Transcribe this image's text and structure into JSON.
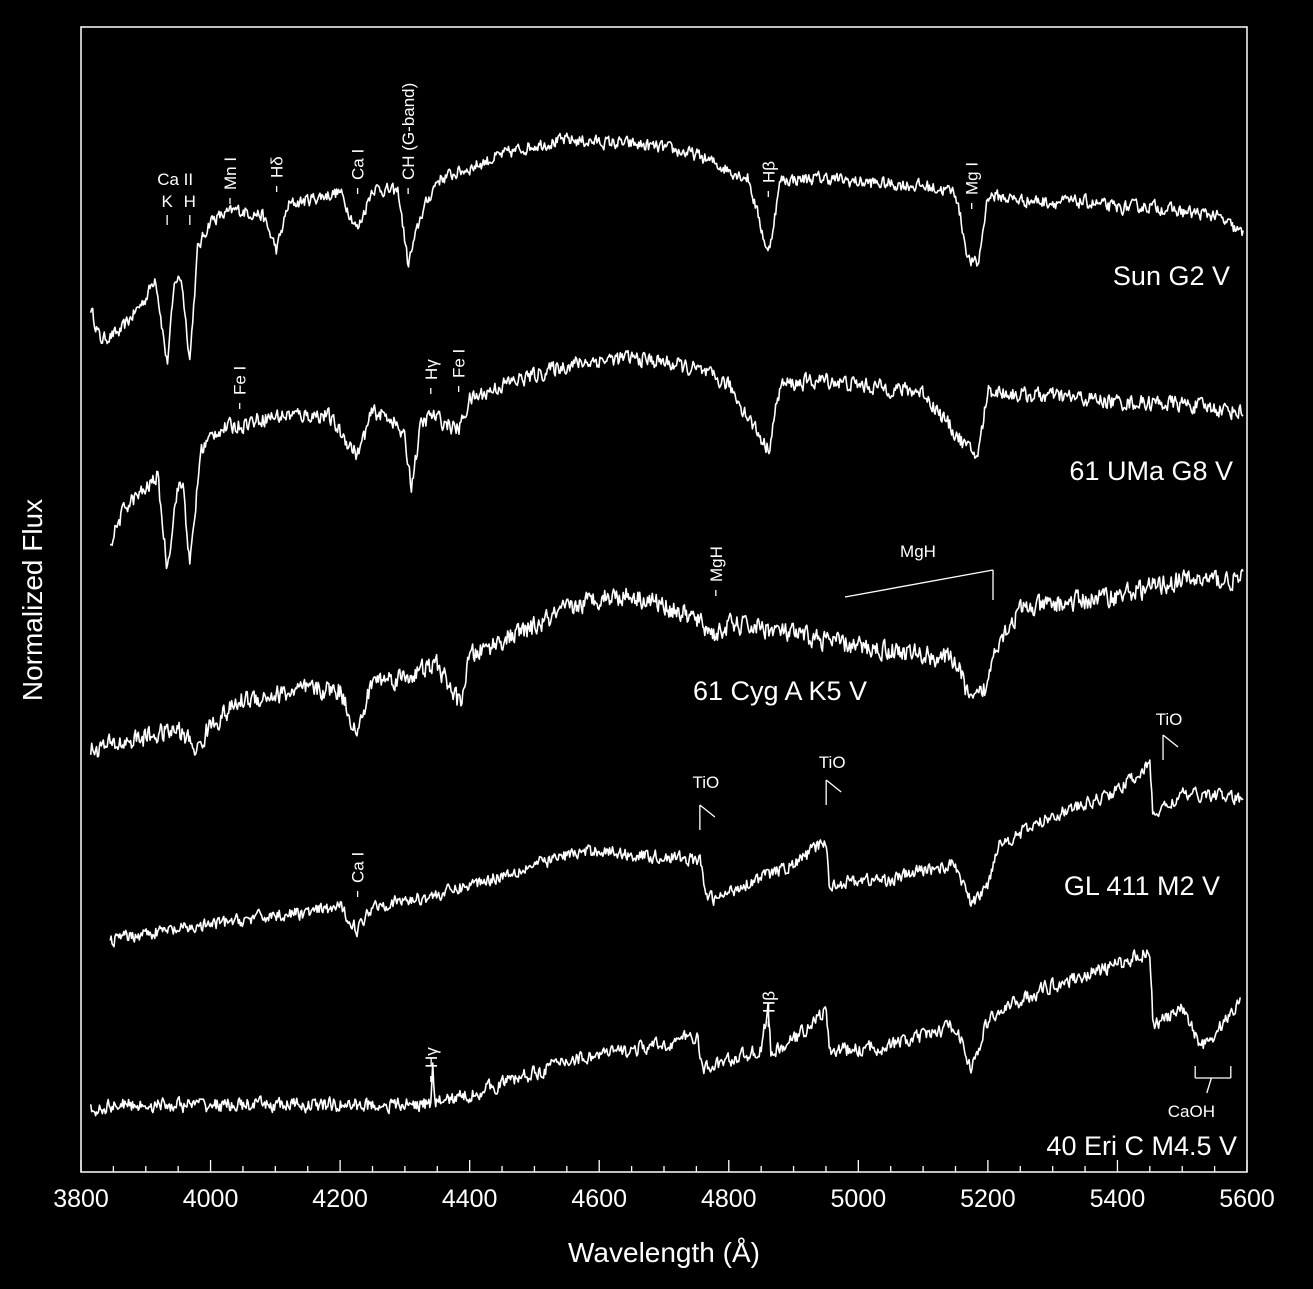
{
  "chart_data": {
    "type": "line",
    "xlabel": "Wavelength (Å)",
    "ylabel": "Normalized Flux",
    "xlim": [
      3800,
      5600
    ],
    "x_ticks": [
      3800,
      4000,
      4200,
      4400,
      4600,
      4800,
      5000,
      5200,
      5400,
      5600
    ],
    "x_minor_step": 50,
    "grid": false,
    "series": [
      {
        "name": "Sun  G2 V",
        "x_start": 3815,
        "x_end": 5595,
        "baseline": 0,
        "points": [
          [
            3815,
            -38
          ],
          [
            3830,
            -70
          ],
          [
            3860,
            -62
          ],
          [
            3900,
            -28
          ],
          [
            3915,
            -6
          ],
          [
            3933,
            -95
          ],
          [
            3945,
            -10
          ],
          [
            3955,
            -8
          ],
          [
            3968,
            -90
          ],
          [
            3980,
            20
          ],
          [
            4000,
            50
          ],
          [
            4040,
            60
          ],
          [
            4080,
            55
          ],
          [
            4102,
            20
          ],
          [
            4120,
            65
          ],
          [
            4160,
            72
          ],
          [
            4200,
            78
          ],
          [
            4227,
            40
          ],
          [
            4250,
            82
          ],
          [
            4290,
            78
          ],
          [
            4305,
            5
          ],
          [
            4325,
            55
          ],
          [
            4350,
            90
          ],
          [
            4400,
            102
          ],
          [
            4450,
            115
          ],
          [
            4500,
            125
          ],
          [
            4550,
            130
          ],
          [
            4600,
            128
          ],
          [
            4650,
            126
          ],
          [
            4700,
            122
          ],
          [
            4750,
            115
          ],
          [
            4800,
            100
          ],
          [
            4830,
            92
          ],
          [
            4861,
            15
          ],
          [
            4880,
            90
          ],
          [
            4950,
            92
          ],
          [
            5000,
            88
          ],
          [
            5050,
            86
          ],
          [
            5100,
            84
          ],
          [
            5150,
            78
          ],
          [
            5170,
            10
          ],
          [
            5185,
            5
          ],
          [
            5200,
            75
          ],
          [
            5250,
            70
          ],
          [
            5300,
            68
          ],
          [
            5350,
            68
          ],
          [
            5400,
            62
          ],
          [
            5450,
            64
          ],
          [
            5500,
            58
          ],
          [
            5550,
            55
          ],
          [
            5595,
            35
          ]
        ],
        "noise": 9,
        "labels": [
          {
            "text": "K",
            "x": 3933
          },
          {
            "text": "H",
            "x": 3968
          },
          {
            "text": "Ca II",
            "x": 3950
          },
          {
            "text": "Mn I",
            "x": 4030
          },
          {
            "text": "Hδ",
            "x": 4102
          },
          {
            "text": "Ca I",
            "x": 4227
          },
          {
            "text": "CH (G-band)",
            "x": 4305
          },
          {
            "text": "Hβ",
            "x": 4861
          },
          {
            "text": "Mg I",
            "x": 5175
          }
        ],
        "name_label": "Sun  G2 V"
      },
      {
        "name": "61 UMa  G8 V",
        "x_start": 3845,
        "x_end": 5595,
        "baseline": 0,
        "points": [
          [
            3845,
            -72
          ],
          [
            3870,
            -35
          ],
          [
            3900,
            -20
          ],
          [
            3918,
            -5
          ],
          [
            3933,
            -98
          ],
          [
            3948,
            -20
          ],
          [
            3958,
            -15
          ],
          [
            3968,
            -98
          ],
          [
            3985,
            20
          ],
          [
            4010,
            40
          ],
          [
            4045,
            45
          ],
          [
            4080,
            52
          ],
          [
            4120,
            55
          ],
          [
            4180,
            55
          ],
          [
            4227,
            15
          ],
          [
            4250,
            58
          ],
          [
            4280,
            52
          ],
          [
            4300,
            30
          ],
          [
            4310,
            -15
          ],
          [
            4325,
            45
          ],
          [
            4340,
            55
          ],
          [
            4383,
            40
          ],
          [
            4400,
            70
          ],
          [
            4450,
            85
          ],
          [
            4500,
            95
          ],
          [
            4550,
            105
          ],
          [
            4600,
            110
          ],
          [
            4650,
            112
          ],
          [
            4700,
            108
          ],
          [
            4750,
            100
          ],
          [
            4800,
            85
          ],
          [
            4861,
            20
          ],
          [
            4880,
            85
          ],
          [
            4950,
            90
          ],
          [
            5000,
            85
          ],
          [
            5100,
            78
          ],
          [
            5170,
            20
          ],
          [
            5185,
            15
          ],
          [
            5200,
            80
          ],
          [
            5250,
            75
          ],
          [
            5300,
            74
          ],
          [
            5400,
            68
          ],
          [
            5500,
            66
          ],
          [
            5595,
            58
          ]
        ],
        "noise": 11,
        "labels": [
          {
            "text": "Fe I",
            "x": 4045
          },
          {
            "text": "Hγ",
            "x": 4340
          },
          {
            "text": "Fe I",
            "x": 4383
          }
        ],
        "name_label": "61 UMa  G8 V"
      },
      {
        "name": "61 Cyg A  K5 V",
        "x_start": 3815,
        "x_end": 5595,
        "baseline": 0,
        "points": [
          [
            3815,
            -5
          ],
          [
            3850,
            0
          ],
          [
            3900,
            8
          ],
          [
            3950,
            15
          ],
          [
            3980,
            -5
          ],
          [
            4000,
            20
          ],
          [
            4050,
            45
          ],
          [
            4100,
            50
          ],
          [
            4150,
            55
          ],
          [
            4200,
            55
          ],
          [
            4227,
            10
          ],
          [
            4250,
            65
          ],
          [
            4300,
            68
          ],
          [
            4350,
            80
          ],
          [
            4385,
            40
          ],
          [
            4400,
            88
          ],
          [
            4450,
            105
          ],
          [
            4500,
            118
          ],
          [
            4550,
            135
          ],
          [
            4600,
            148
          ],
          [
            4650,
            150
          ],
          [
            4700,
            140
          ],
          [
            4750,
            125
          ],
          [
            4780,
            110
          ],
          [
            4800,
            120
          ],
          [
            4850,
            118
          ],
          [
            4900,
            110
          ],
          [
            4950,
            105
          ],
          [
            5000,
            98
          ],
          [
            5050,
            95
          ],
          [
            5100,
            90
          ],
          [
            5150,
            85
          ],
          [
            5175,
            40
          ],
          [
            5200,
            60
          ],
          [
            5210,
            100
          ],
          [
            5250,
            135
          ],
          [
            5300,
            140
          ],
          [
            5400,
            150
          ],
          [
            5500,
            165
          ],
          [
            5595,
            165
          ]
        ],
        "noise": 14,
        "labels": [
          {
            "text": "MgH",
            "x": 4780
          },
          {
            "text": "MgH",
            "x": 5100
          }
        ],
        "name_label": "61 Cyg A  K5 V"
      },
      {
        "name": "GL 411  M2 V",
        "x_start": 3845,
        "x_end": 5595,
        "baseline": 0,
        "points": [
          [
            3845,
            -15
          ],
          [
            3900,
            -8
          ],
          [
            3950,
            -5
          ],
          [
            4000,
            0
          ],
          [
            4050,
            5
          ],
          [
            4100,
            10
          ],
          [
            4150,
            12
          ],
          [
            4200,
            18
          ],
          [
            4227,
            -5
          ],
          [
            4250,
            20
          ],
          [
            4300,
            24
          ],
          [
            4350,
            30
          ],
          [
            4400,
            40
          ],
          [
            4450,
            50
          ],
          [
            4500,
            60
          ],
          [
            4550,
            70
          ],
          [
            4600,
            75
          ],
          [
            4650,
            70
          ],
          [
            4700,
            68
          ],
          [
            4755,
            65
          ],
          [
            4765,
            30
          ],
          [
            4780,
            25
          ],
          [
            4820,
            40
          ],
          [
            4900,
            60
          ],
          [
            4950,
            85
          ],
          [
            4955,
            40
          ],
          [
            5000,
            45
          ],
          [
            5050,
            45
          ],
          [
            5100,
            55
          ],
          [
            5150,
            60
          ],
          [
            5175,
            20
          ],
          [
            5200,
            40
          ],
          [
            5215,
            80
          ],
          [
            5260,
            95
          ],
          [
            5300,
            110
          ],
          [
            5350,
            120
          ],
          [
            5400,
            135
          ],
          [
            5450,
            160
          ],
          [
            5455,
            110
          ],
          [
            5500,
            130
          ],
          [
            5550,
            130
          ],
          [
            5595,
            125
          ]
        ],
        "noise": 9,
        "labels": [
          {
            "text": "Ca I",
            "x": 4227
          },
          {
            "text": "TiO",
            "x": 4760
          },
          {
            "text": "TiO",
            "x": 4955
          },
          {
            "text": "TiO",
            "x": 5475
          }
        ],
        "name_label": "GL 411  M2 V"
      },
      {
        "name": "40 Eri C  M4.5 V",
        "x_start": 3815,
        "x_end": 5590,
        "baseline": 0,
        "points": [
          [
            3815,
            -5
          ],
          [
            3850,
            0
          ],
          [
            3900,
            0
          ],
          [
            3950,
            0
          ],
          [
            4000,
            0
          ],
          [
            4050,
            0
          ],
          [
            4100,
            0
          ],
          [
            4150,
            0
          ],
          [
            4200,
            0
          ],
          [
            4250,
            0
          ],
          [
            4300,
            0
          ],
          [
            4340,
            2
          ],
          [
            4343,
            35
          ],
          [
            4346,
            2
          ],
          [
            4400,
            10
          ],
          [
            4450,
            22
          ],
          [
            4500,
            32
          ],
          [
            4550,
            45
          ],
          [
            4600,
            50
          ],
          [
            4650,
            55
          ],
          [
            4700,
            60
          ],
          [
            4750,
            70
          ],
          [
            4760,
            35
          ],
          [
            4800,
            45
          ],
          [
            4850,
            55
          ],
          [
            4861,
            100
          ],
          [
            4865,
            50
          ],
          [
            4900,
            65
          ],
          [
            4950,
            95
          ],
          [
            4955,
            55
          ],
          [
            5000,
            55
          ],
          [
            5050,
            60
          ],
          [
            5100,
            68
          ],
          [
            5150,
            80
          ],
          [
            5175,
            35
          ],
          [
            5200,
            85
          ],
          [
            5250,
            105
          ],
          [
            5300,
            120
          ],
          [
            5350,
            130
          ],
          [
            5400,
            140
          ],
          [
            5450,
            155
          ],
          [
            5455,
            80
          ],
          [
            5500,
            95
          ],
          [
            5530,
            60
          ],
          [
            5550,
            70
          ],
          [
            5590,
            105
          ]
        ],
        "noise": 10,
        "labels": [
          {
            "text": "Hγ",
            "x": 4340
          },
          {
            "text": "Hβ",
            "x": 4861
          },
          {
            "text": "CaOH",
            "x": 5545
          }
        ],
        "name_label": "40 Eri C  M4.5 V"
      }
    ]
  }
}
